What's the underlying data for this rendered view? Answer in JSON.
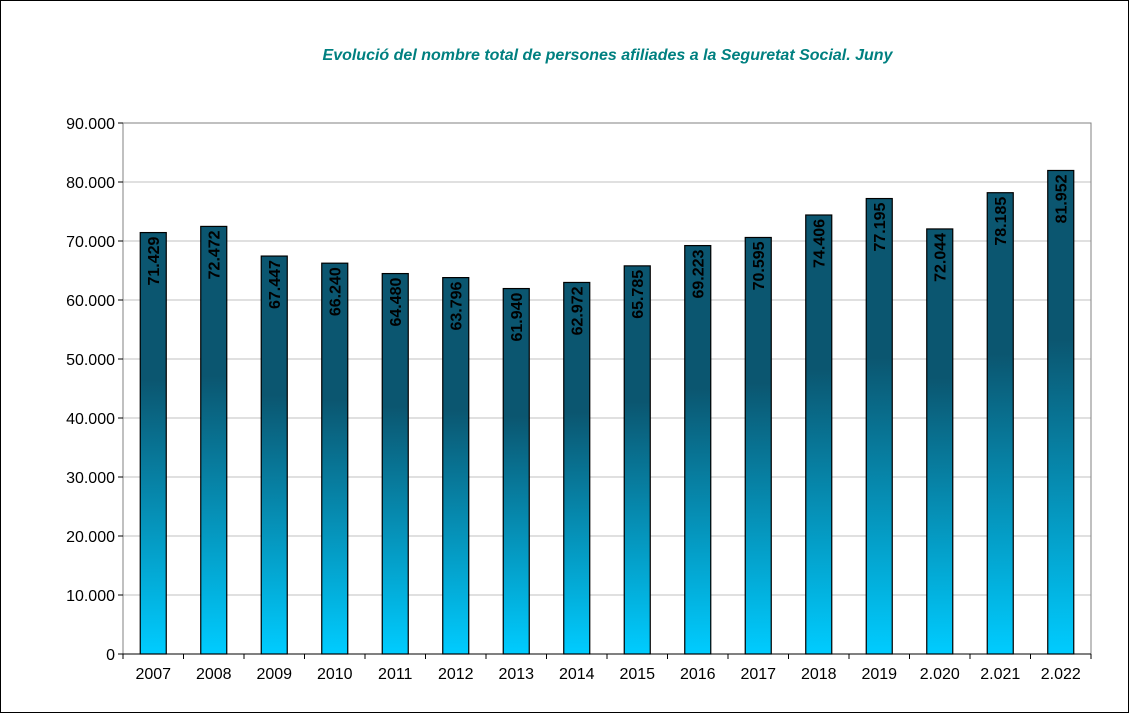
{
  "colors": {
    "title": "#008080",
    "bar_top": "#0b5670",
    "bar_bottom": "#00ccff",
    "bar_stroke": "#000000",
    "grid": "#c0c0c0",
    "plot_border": "#808080"
  },
  "chart_data": {
    "type": "bar",
    "title": "Evolució del nombre total de persones afiliades a la Seguretat Social. Juny",
    "xlabel": "",
    "ylabel": "",
    "categories": [
      "2007",
      "2008",
      "2009",
      "2010",
      "2011",
      "2012",
      "2013",
      "2014",
      "2015",
      "2016",
      "2017",
      "2018",
      "2019",
      "2.020",
      "2.021",
      "2.022"
    ],
    "values": [
      71429,
      72472,
      67447,
      66240,
      64480,
      63796,
      61940,
      62972,
      65785,
      69223,
      70595,
      74406,
      77195,
      72044,
      78185,
      81952
    ],
    "data_labels": [
      "71.429",
      "72.472",
      "67.447",
      "66.240",
      "64.480",
      "63.796",
      "61.940",
      "62.972",
      "65.785",
      "69.223",
      "70.595",
      "74.406",
      "77.195",
      "72.044",
      "78.185",
      "81.952"
    ],
    "ylim": [
      0,
      90000
    ],
    "yticks": [
      0,
      10000,
      20000,
      30000,
      40000,
      50000,
      60000,
      70000,
      80000,
      90000
    ],
    "ytick_labels": [
      "0",
      "10.000",
      "20.000",
      "30.000",
      "40.000",
      "50.000",
      "60.000",
      "70.000",
      "80.000",
      "90.000"
    ],
    "grid": true,
    "legend": "none"
  }
}
